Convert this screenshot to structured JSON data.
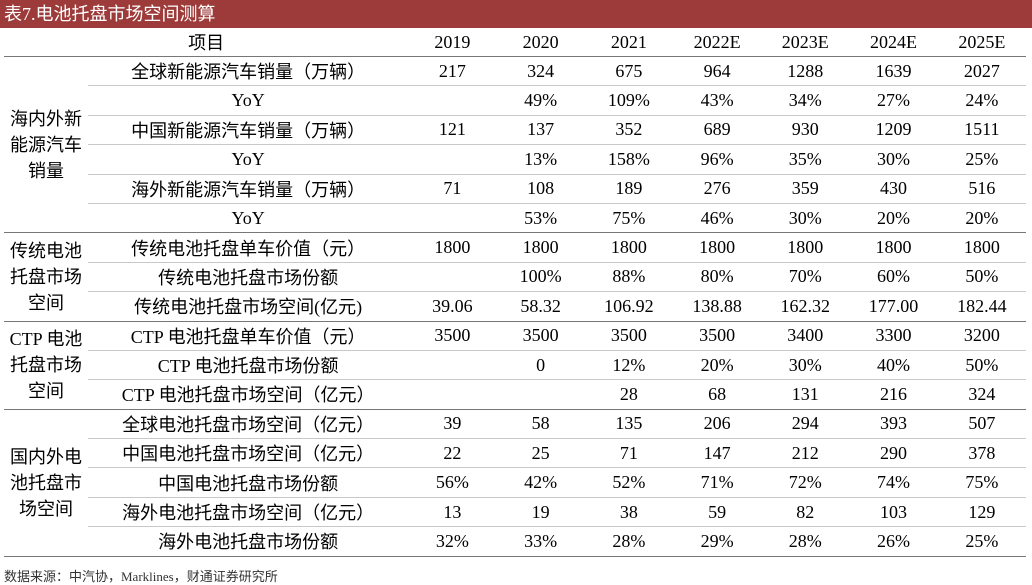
{
  "header": {
    "title": "表7.电池托盘市场空间测算"
  },
  "table": {
    "columns": [
      "项目",
      "2019",
      "2020",
      "2021",
      "2022E",
      "2023E",
      "2024E",
      "2025E"
    ],
    "groups": [
      {
        "label": "海内外新能源汽车销量",
        "rows": [
          {
            "label": "全球新能源汽车销量（万辆）",
            "cells": [
              "217",
              "324",
              "675",
              "964",
              "1288",
              "1639",
              "2027"
            ]
          },
          {
            "label": "YoY",
            "cells": [
              null,
              "49%",
              "109%",
              "43%",
              "34%",
              "27%",
              "24%"
            ]
          },
          {
            "label": "中国新能源汽车销量（万辆）",
            "cells": [
              "121",
              "137",
              "352",
              "689",
              "930",
              "1209",
              "1511"
            ]
          },
          {
            "label": "YoY",
            "cells": [
              null,
              "13%",
              "158%",
              "96%",
              "35%",
              "30%",
              "25%"
            ]
          },
          {
            "label": "海外新能源汽车销量（万辆）",
            "cells": [
              "71",
              "108",
              "189",
              "276",
              "359",
              "430",
              "516"
            ]
          },
          {
            "label": "YoY",
            "cells": [
              null,
              "53%",
              "75%",
              "46%",
              "30%",
              "20%",
              "20%"
            ]
          }
        ]
      },
      {
        "label": "传统电池托盘市场空间",
        "rows": [
          {
            "label": "传统电池托盘单车价值（元）",
            "cells": [
              "1800",
              "1800",
              "1800",
              "1800",
              "1800",
              "1800",
              "1800"
            ]
          },
          {
            "label": "传统电池托盘市场份额",
            "cells": [
              null,
              "100%",
              "88%",
              "80%",
              "70%",
              "60%",
              "50%"
            ]
          },
          {
            "label": "传统电池托盘市场空间(亿元)",
            "cells": [
              "39.06",
              "58.32",
              "106.92",
              "138.88",
              "162.32",
              "177.00",
              "182.44"
            ]
          }
        ]
      },
      {
        "label": "CTP 电池托盘市场空间",
        "rows": [
          {
            "label": "CTP 电池托盘单车价值（元）",
            "cells": [
              "3500",
              "3500",
              "3500",
              "3500",
              "3400",
              "3300",
              "3200"
            ]
          },
          {
            "label": "CTP 电池托盘市场份额",
            "cells": [
              null,
              "0",
              "12%",
              "20%",
              "30%",
              "40%",
              "50%"
            ]
          },
          {
            "label": "CTP 电池托盘市场空间（亿元）",
            "cells": [
              null,
              null,
              "28",
              "68",
              "131",
              "216",
              "324"
            ]
          }
        ]
      },
      {
        "label": "国内外电池托盘市场空间",
        "rows": [
          {
            "label": "全球电池托盘市场空间（亿元）",
            "cells": [
              "39",
              "58",
              "135",
              "206",
              "294",
              "393",
              "507"
            ]
          },
          {
            "label": "中国电池托盘市场空间（亿元）",
            "cells": [
              "22",
              "25",
              "71",
              "147",
              "212",
              "290",
              "378"
            ]
          },
          {
            "label": "中国电池托盘市场份额",
            "cells": [
              "56%",
              "42%",
              "52%",
              "71%",
              "72%",
              "74%",
              "75%"
            ]
          },
          {
            "label": "海外电池托盘市场空间（亿元）",
            "cells": [
              "13",
              "19",
              "38",
              "59",
              "82",
              "103",
              "129"
            ]
          },
          {
            "label": "海外电池托盘市场份额",
            "cells": [
              "32%",
              "33%",
              "28%",
              "29%",
              "28%",
              "26%",
              "25%"
            ]
          }
        ]
      }
    ]
  },
  "footer": {
    "source": "数据来源：中汽协，Marklines，财通证券研究所"
  }
}
